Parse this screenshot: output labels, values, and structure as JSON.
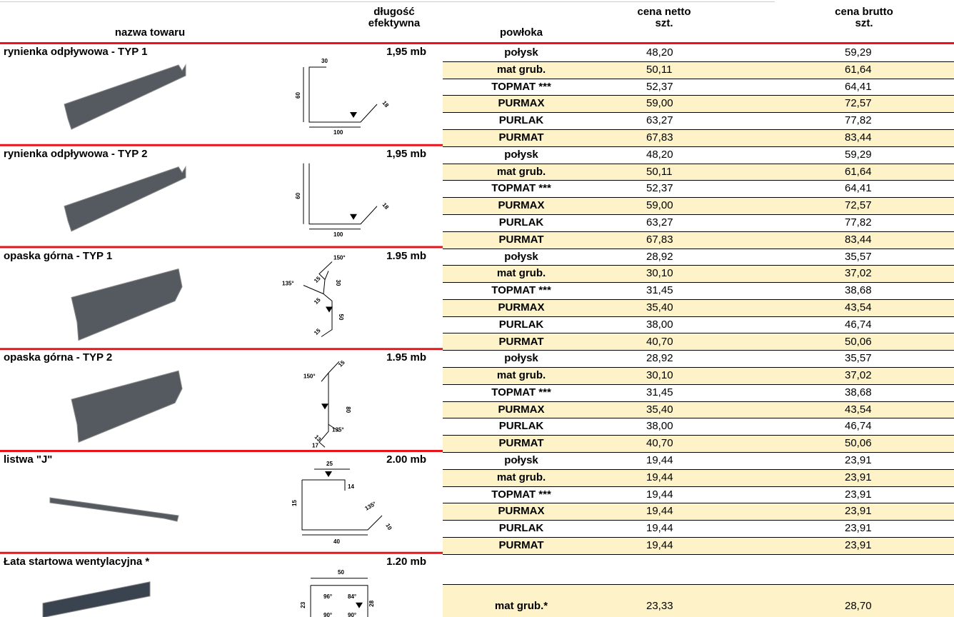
{
  "header": {
    "name": "nazwa towaru",
    "length": [
      "długość",
      "efektywna"
    ],
    "coating": "powłoka",
    "net": [
      "cena netto",
      "szt."
    ],
    "gross": [
      "cena brutto",
      "szt."
    ]
  },
  "products": [
    {
      "name": "rynienka odpływowa - TYP 1",
      "length": "1,95 mb",
      "dims": [
        "30",
        "60",
        "18",
        "100"
      ],
      "rows": [
        {
          "coating": "połysk",
          "net": "48,20",
          "gross": "59,29"
        },
        {
          "coating": "mat grub.",
          "net": "50,11",
          "gross": "61,64"
        },
        {
          "coating": "TOPMAT ***",
          "net": "52,37",
          "gross": "64,41"
        },
        {
          "coating": "PURMAX",
          "net": "59,00",
          "gross": "72,57"
        },
        {
          "coating": "PURLAK",
          "net": "63,27",
          "gross": "77,82"
        },
        {
          "coating": "PURMAT",
          "net": "67,83",
          "gross": "83,44"
        }
      ]
    },
    {
      "name": "rynienka odpływowa - TYP 2",
      "length": "1,95 mb",
      "dims": [
        "60",
        "18",
        "100"
      ],
      "rows": [
        {
          "coating": "połysk",
          "net": "48,20",
          "gross": "59,29"
        },
        {
          "coating": "mat grub.",
          "net": "50,11",
          "gross": "61,64"
        },
        {
          "coating": "TOPMAT ***",
          "net": "52,37",
          "gross": "64,41"
        },
        {
          "coating": "PURMAX",
          "net": "59,00",
          "gross": "72,57"
        },
        {
          "coating": "PURLAK",
          "net": "63,27",
          "gross": "77,82"
        },
        {
          "coating": "PURMAT",
          "net": "67,83",
          "gross": "83,44"
        }
      ]
    },
    {
      "name": "opaska górna - TYP 1",
      "length": "1.95 mb",
      "dims": [
        "150°",
        "135°",
        "15",
        "30",
        "15",
        "50",
        "15"
      ],
      "rows": [
        {
          "coating": "połysk",
          "net": "28,92",
          "gross": "35,57"
        },
        {
          "coating": "mat grub.",
          "net": "30,10",
          "gross": "37,02"
        },
        {
          "coating": "TOPMAT ***",
          "net": "31,45",
          "gross": "38,68"
        },
        {
          "coating": "PURMAX",
          "net": "35,40",
          "gross": "43,54"
        },
        {
          "coating": "PURLAK",
          "net": "38,00",
          "gross": "46,74"
        },
        {
          "coating": "PURMAT",
          "net": "40,70",
          "gross": "50,06"
        }
      ]
    },
    {
      "name": "opaska górna - TYP 2",
      "length": "1.95 mb",
      "dims": [
        "15",
        "150°",
        "80",
        "135°",
        "13",
        "17"
      ],
      "rows": [
        {
          "coating": "połysk",
          "net": "28,92",
          "gross": "35,57"
        },
        {
          "coating": "mat grub.",
          "net": "30,10",
          "gross": "37,02"
        },
        {
          "coating": "TOPMAT ***",
          "net": "31,45",
          "gross": "38,68"
        },
        {
          "coating": "PURMAX",
          "net": "35,40",
          "gross": "43,54"
        },
        {
          "coating": "PURLAK",
          "net": "38,00",
          "gross": "46,74"
        },
        {
          "coating": "PURMAT",
          "net": "40,70",
          "gross": "50,06"
        }
      ]
    },
    {
      "name": "listwa \"J\"",
      "length": "2.00 mb",
      "dims": [
        "25",
        "14",
        "15",
        "135°",
        "10",
        "40"
      ],
      "rows": [
        {
          "coating": "połysk",
          "net": "19,44",
          "gross": "23,91"
        },
        {
          "coating": "mat grub.",
          "net": "19,44",
          "gross": "23,91"
        },
        {
          "coating": "TOPMAT ***",
          "net": "19,44",
          "gross": "23,91"
        },
        {
          "coating": "PURMAX",
          "net": "19,44",
          "gross": "23,91"
        },
        {
          "coating": "PURLAK",
          "net": "19,44",
          "gross": "23,91"
        },
        {
          "coating": "PURMAT",
          "net": "19,44",
          "gross": "23,91"
        }
      ]
    },
    {
      "name": "Łata startowa wentylacyjna *",
      "length": "1.20 mb",
      "dims": [
        "50",
        "96°",
        "84°",
        "23",
        "28",
        "90°",
        "90°"
      ],
      "rows": [
        {
          "coating": "mat grub.*",
          "net": "23,33",
          "gross": "28,70"
        }
      ]
    }
  ]
}
